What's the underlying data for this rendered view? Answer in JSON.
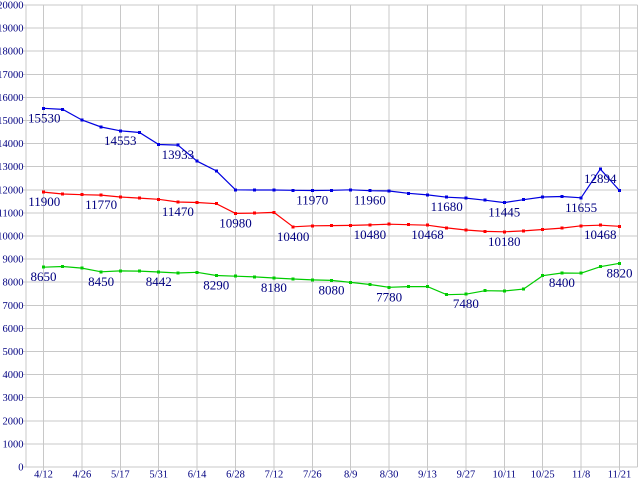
{
  "chart_data": {
    "type": "line",
    "title": "",
    "legend": "none",
    "grid": true,
    "background": "#FFFFFF",
    "grid_color": "#C8C8C8",
    "text_color": "#000080",
    "y_axis": {
      "min": 0,
      "max": 20000,
      "step": 1000
    },
    "x_tick_labels": [
      "4/12",
      "4/26",
      "5/17",
      "5/31",
      "6/14",
      "6/28",
      "7/12",
      "7/26",
      "8/9",
      "8/30",
      "9/13",
      "9/27",
      "10/11",
      "10/25",
      "11/8",
      "11/21"
    ],
    "points_per_tick_interval": 2,
    "series": [
      {
        "name": "blue-series",
        "color": "#0000E0",
        "values": [
          15530,
          15480,
          15020,
          14720,
          14553,
          14480,
          13960,
          13933,
          13240,
          12820,
          12000,
          11990,
          11990,
          11980,
          11970,
          11980,
          12000,
          11960,
          11950,
          11850,
          11780,
          11680,
          11640,
          11550,
          11445,
          11570,
          11690,
          11710,
          11655,
          12894,
          11970
        ],
        "point_labels": {
          "0": "15530",
          "4": "14553",
          "7": "13933",
          "14": "11970",
          "17": "11960",
          "21": "11680",
          "24": "11445",
          "28": "11655",
          "29": "12894"
        }
      },
      {
        "name": "red-series",
        "color": "#FF0000",
        "values": [
          11900,
          11820,
          11790,
          11770,
          11690,
          11640,
          11590,
          11470,
          11450,
          11400,
          10980,
          10990,
          11020,
          10400,
          10440,
          10450,
          10460,
          10480,
          10510,
          10490,
          10468,
          10350,
          10260,
          10200,
          10180,
          10220,
          10280,
          10340,
          10440,
          10468,
          10420
        ],
        "point_labels": {
          "0": "11900",
          "3": "11770",
          "7": "11470",
          "10": "10980",
          "13": "10400",
          "17": "10480",
          "20": "10468",
          "24": "10180",
          "29": "10468"
        }
      },
      {
        "name": "green-series",
        "color": "#00CC00",
        "values": [
          8650,
          8680,
          8610,
          8450,
          8490,
          8480,
          8442,
          8400,
          8430,
          8290,
          8260,
          8230,
          8180,
          8140,
          8100,
          8080,
          7990,
          7900,
          7780,
          7810,
          7810,
          7460,
          7480,
          7630,
          7620,
          7700,
          8280,
          8400,
          8390,
          8670,
          8820
        ],
        "point_labels": {
          "0": "8650",
          "3": "8450",
          "6": "8442",
          "9": "8290",
          "12": "8180",
          "15": "8080",
          "18": "7780",
          "22": "7480",
          "27": "8400",
          "30": "8820"
        }
      }
    ]
  }
}
